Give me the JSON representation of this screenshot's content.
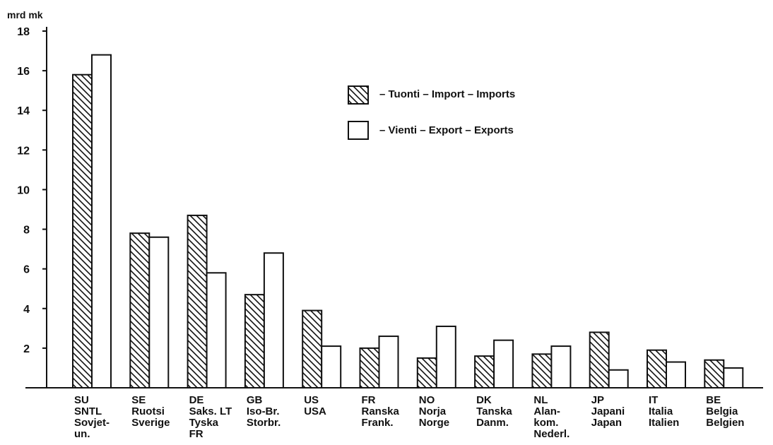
{
  "chart_data": {
    "type": "bar",
    "ylabel": "mrd mk",
    "ylim": [
      0,
      18
    ],
    "yticks": [
      2,
      4,
      6,
      8,
      10,
      12,
      14,
      16,
      18
    ],
    "grid": false,
    "legend_position": "top-right",
    "categories": [
      [
        "SU",
        "SNTL",
        "Sovjet-",
        "un."
      ],
      [
        "SE",
        "Ruotsi",
        "Sverige"
      ],
      [
        "DE",
        "Saks. LT",
        "Tyska",
        "FR"
      ],
      [
        "GB",
        "Iso-Br.",
        "Storbr."
      ],
      [
        "US",
        "USA"
      ],
      [
        "FR",
        "Ranska",
        "Frank."
      ],
      [
        "NO",
        "Norja",
        "Norge"
      ],
      [
        "DK",
        "Tanska",
        "Danm."
      ],
      [
        "NL",
        "Alan-",
        "kom.",
        "Nederl."
      ],
      [
        "JP",
        "Japani",
        "Japan"
      ],
      [
        "IT",
        "Italia",
        "Italien"
      ],
      [
        "BE",
        "Belgia",
        "Belgien"
      ]
    ],
    "series": [
      {
        "name": "– Tuonti – Import – Imports",
        "pattern": "hatched",
        "values": [
          15.8,
          7.8,
          8.7,
          4.7,
          3.9,
          2.0,
          1.5,
          1.6,
          1.7,
          2.8,
          1.9,
          1.4
        ]
      },
      {
        "name": "– Vienti – Export – Exports",
        "pattern": "open",
        "values": [
          16.8,
          7.6,
          5.8,
          6.8,
          2.1,
          2.6,
          3.1,
          2.4,
          2.1,
          0.9,
          1.3,
          1.0
        ]
      }
    ],
    "colors": {
      "ink": "#111111",
      "fill_open": "#ffffff"
    }
  }
}
